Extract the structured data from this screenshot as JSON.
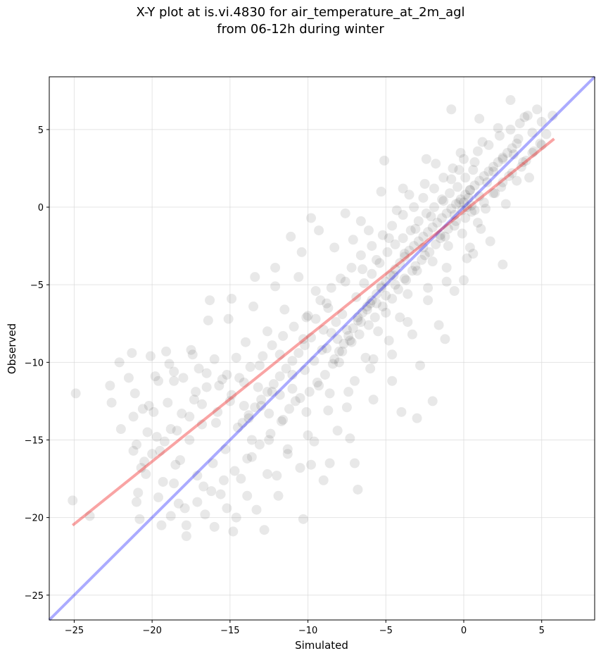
{
  "chart_data": {
    "type": "scatter",
    "title": "X-Y plot at is.vi.4830 for air_temperature_at_2m_agl",
    "subtitle": "from 06-12h during winter",
    "xlabel": "Simulated",
    "ylabel": "Observed",
    "xlim": [
      -26.6,
      8.4
    ],
    "ylim": [
      -26.6,
      8.4
    ],
    "xticks": [
      -25,
      -20,
      -15,
      -10,
      -5,
      0,
      5
    ],
    "yticks": [
      -25,
      -20,
      -15,
      -10,
      -5,
      0,
      5
    ],
    "xtick_labels": [
      "−25",
      "−20",
      "−15",
      "−10",
      "−5",
      "0",
      "5"
    ],
    "ytick_labels": [
      "−25",
      "−20",
      "−15",
      "−10",
      "−5",
      "0",
      "5"
    ],
    "grid": true,
    "point_color": "#000000",
    "point_opacity": 0.09,
    "identity_line": {
      "x": [
        -26.6,
        8.4
      ],
      "y": [
        -26.6,
        8.4
      ],
      "color": "#0000ff"
    },
    "fit_line": {
      "x": [
        -25.1,
        5.8
      ],
      "y": [
        -20.5,
        4.4
      ],
      "color": "#ee1111"
    },
    "points": [
      [
        -25.1,
        -18.9
      ],
      [
        -24.9,
        -12.0
      ],
      [
        -24.0,
        -19.9
      ],
      [
        -22.6,
        -12.6
      ],
      [
        -22.7,
        -11.5
      ],
      [
        -22.1,
        -10.0
      ],
      [
        -21.3,
        -9.4
      ],
      [
        -21.1,
        -12.0
      ],
      [
        -21.0,
        -15.3
      ],
      [
        -20.9,
        -18.4
      ],
      [
        -20.8,
        -20.1
      ],
      [
        -20.6,
        -13.0
      ],
      [
        -20.5,
        -16.4
      ],
      [
        -20.3,
        -14.5
      ],
      [
        -20.1,
        -9.6
      ],
      [
        -19.9,
        -13.2
      ],
      [
        -19.6,
        -11.2
      ],
      [
        -19.5,
        -15.7
      ],
      [
        -19.3,
        -17.7
      ],
      [
        -19.1,
        -9.3
      ],
      [
        -19.0,
        -12.6
      ],
      [
        -18.8,
        -14.3
      ],
      [
        -18.6,
        -10.6
      ],
      [
        -18.5,
        -16.6
      ],
      [
        -18.3,
        -19.1
      ],
      [
        -18.1,
        -13.3
      ],
      [
        -18.0,
        -11.0
      ],
      [
        -17.8,
        -21.2
      ],
      [
        -17.6,
        -15.0
      ],
      [
        -17.5,
        -9.2
      ],
      [
        -17.3,
        -12.4
      ],
      [
        -17.1,
        -17.3
      ],
      [
        -17.0,
        -10.4
      ],
      [
        -16.8,
        -14.0
      ],
      [
        -16.6,
        -19.8
      ],
      [
        -16.5,
        -11.6
      ],
      [
        -16.3,
        -6.0
      ],
      [
        -16.1,
        -16.5
      ],
      [
        -16.0,
        -9.8
      ],
      [
        -15.8,
        -13.2
      ],
      [
        -15.6,
        -18.5
      ],
      [
        -15.5,
        -11.1
      ],
      [
        -15.3,
        -15.6
      ],
      [
        -15.1,
        -7.2
      ],
      [
        -15.0,
        -12.5
      ],
      [
        -14.8,
        -20.9
      ],
      [
        -14.6,
        -9.7
      ],
      [
        -14.5,
        -14.2
      ],
      [
        -14.3,
        -17.5
      ],
      [
        -14.1,
        -11.3
      ],
      [
        -14.0,
        -8.7
      ],
      [
        -13.8,
        -13.6
      ],
      [
        -13.6,
        -16.1
      ],
      [
        -13.5,
        -6.4
      ],
      [
        -13.3,
        -19.5
      ],
      [
        -13.1,
        -10.2
      ],
      [
        -13.0,
        -12.8
      ],
      [
        -12.8,
        -20.8
      ],
      [
        -12.6,
        -8.0
      ],
      [
        -12.5,
        -15.0
      ],
      [
        -12.3,
        -11.9
      ],
      [
        -12.1,
        -3.9
      ],
      [
        -12.0,
        -17.3
      ],
      [
        -11.8,
        -9.5
      ],
      [
        -11.6,
        -13.7
      ],
      [
        -11.5,
        -6.6
      ],
      [
        -11.3,
        -15.6
      ],
      [
        -11.1,
        -1.9
      ],
      [
        -11.0,
        -10.8
      ],
      [
        -10.8,
        -12.5
      ],
      [
        -10.6,
        -4.5
      ],
      [
        -10.5,
        -16.8
      ],
      [
        -10.3,
        -8.5
      ],
      [
        -10.1,
        -13.2
      ],
      [
        -10.0,
        -7.0
      ],
      [
        -9.8,
        -0.7
      ],
      [
        -9.6,
        -15.1
      ],
      [
        -9.5,
        -5.4
      ],
      [
        -9.3,
        -11.5
      ],
      [
        -9.1,
        -9.2
      ],
      [
        -9.0,
        -17.6
      ],
      [
        -8.8,
        -6.2
      ],
      [
        -8.6,
        -12.0
      ],
      [
        -8.5,
        -8.1
      ],
      [
        -8.3,
        -2.6
      ],
      [
        -8.1,
        -14.4
      ],
      [
        -8.0,
        -10.0
      ],
      [
        -7.8,
        -6.9
      ],
      [
        -7.6,
        -4.8
      ],
      [
        -7.5,
        -12.9
      ],
      [
        -7.3,
        -8.6
      ],
      [
        -7.1,
        -2.1
      ],
      [
        -7.0,
        -11.2
      ],
      [
        -6.8,
        -18.2
      ],
      [
        -6.6,
        -7.4
      ],
      [
        -6.5,
        -4.0
      ],
      [
        -6.3,
        -9.7
      ],
      [
        -6.1,
        -1.5
      ],
      [
        -6.0,
        -6.2
      ],
      [
        -5.8,
        -12.4
      ],
      [
        -5.6,
        -3.4
      ],
      [
        -5.5,
        -8.0
      ],
      [
        -5.3,
        -5.1
      ],
      [
        -5.1,
        3.0
      ],
      [
        -5.0,
        -6.8
      ],
      [
        -4.8,
        -2.0
      ],
      [
        -4.6,
        -9.5
      ],
      [
        -4.5,
        -4.4
      ],
      [
        -4.3,
        -0.2
      ],
      [
        -4.1,
        -7.1
      ],
      [
        -4.0,
        -13.2
      ],
      [
        -3.8,
        -3.0
      ],
      [
        -3.6,
        -5.6
      ],
      [
        -3.5,
        0.8
      ],
      [
        -3.3,
        -8.2
      ],
      [
        -3.1,
        -1.4
      ],
      [
        -3.0,
        -4.1
      ],
      [
        -2.8,
        -10.2
      ],
      [
        -2.6,
        -2.6
      ],
      [
        -2.5,
        1.5
      ],
      [
        -2.3,
        -6.0
      ],
      [
        -2.1,
        -0.6
      ],
      [
        -2.0,
        -3.5
      ],
      [
        -1.8,
        2.8
      ],
      [
        -1.6,
        -7.6
      ],
      [
        -1.5,
        -1.8
      ],
      [
        -1.3,
        0.4
      ],
      [
        -1.1,
        -4.8
      ],
      [
        -1.0,
        -2.5
      ],
      [
        -0.8,
        1.8
      ],
      [
        -0.6,
        -5.4
      ],
      [
        -0.5,
        -0.9
      ],
      [
        -0.3,
        2.4
      ],
      [
        -0.1,
        -1.7
      ],
      [
        0.0,
        0.3
      ],
      [
        0.2,
        -3.3
      ],
      [
        0.4,
        1.1
      ],
      [
        0.5,
        -0.3
      ],
      [
        0.7,
        2.9
      ],
      [
        0.9,
        -1.0
      ],
      [
        1.0,
        0.7
      ],
      [
        1.2,
        4.2
      ],
      [
        1.4,
        -0.1
      ],
      [
        1.5,
        1.6
      ],
      [
        1.7,
        -2.2
      ],
      [
        1.9,
        2.3
      ],
      [
        2.0,
        0.9
      ],
      [
        2.2,
        5.1
      ],
      [
        2.4,
        1.3
      ],
      [
        2.5,
        3.1
      ],
      [
        2.7,
        0.2
      ],
      [
        2.9,
        2.0
      ],
      [
        3.0,
        6.9
      ],
      [
        3.2,
        3.4
      ],
      [
        3.4,
        1.7
      ],
      [
        3.5,
        4.4
      ],
      [
        3.7,
        2.6
      ],
      [
        3.9,
        5.8
      ],
      [
        4.0,
        3.0
      ],
      [
        4.2,
        1.9
      ],
      [
        4.4,
        4.8
      ],
      [
        4.5,
        3.6
      ],
      [
        4.7,
        6.3
      ],
      [
        4.9,
        4.1
      ],
      [
        5.0,
        5.5
      ],
      [
        5.3,
        4.7
      ],
      [
        5.7,
        5.9
      ],
      [
        2.5,
        -3.7
      ],
      [
        1.0,
        5.7
      ],
      [
        -0.8,
        6.3
      ],
      [
        0.0,
        -4.7
      ],
      [
        -2.0,
        -12.5
      ],
      [
        -3.0,
        -13.6
      ],
      [
        -5.8,
        -9.8
      ],
      [
        -7.0,
        -16.5
      ],
      [
        -10.3,
        -20.1
      ],
      [
        -9.8,
        -16.6
      ],
      [
        -11.9,
        -18.6
      ],
      [
        -13.6,
        -15.0
      ],
      [
        -14.6,
        -20.0
      ],
      [
        -16.0,
        -20.6
      ],
      [
        -17.8,
        -20.5
      ],
      [
        -18.6,
        -17.8
      ],
      [
        -19.4,
        -20.5
      ],
      [
        -21.0,
        -19.0
      ],
      [
        -8.6,
        -16.5
      ],
      [
        -7.3,
        -14.9
      ],
      [
        -4.6,
        -11.2
      ],
      [
        -1.2,
        -8.5
      ],
      [
        0.6,
        -3.0
      ],
      [
        -0.2,
        3.5
      ],
      [
        -2.4,
        3.1
      ],
      [
        -3.9,
        1.2
      ],
      [
        -5.3,
        1.0
      ],
      [
        -6.6,
        -0.9
      ],
      [
        -7.6,
        -0.4
      ],
      [
        -9.3,
        -1.5
      ],
      [
        -10.4,
        -2.9
      ],
      [
        -12.1,
        -5.1
      ],
      [
        -13.4,
        -4.5
      ],
      [
        -14.9,
        -5.9
      ],
      [
        -16.4,
        -7.3
      ],
      [
        -17.4,
        -9.5
      ],
      [
        -18.6,
        -11.2
      ],
      [
        -20.2,
        -12.8
      ],
      [
        -21.5,
        -11.0
      ],
      [
        -8.3,
        -9.8
      ],
      [
        -8.0,
        -9.3
      ],
      [
        -7.7,
        -8.8
      ],
      [
        -7.4,
        -8.3
      ],
      [
        -7.1,
        -7.8
      ],
      [
        -6.8,
        -7.3
      ],
      [
        -6.5,
        -6.8
      ],
      [
        -6.2,
        -6.4
      ],
      [
        -5.9,
        -6.0
      ],
      [
        -5.6,
        -5.6
      ],
      [
        -5.3,
        -5.2
      ],
      [
        -5.0,
        -4.8
      ],
      [
        -4.7,
        -4.4
      ],
      [
        -4.4,
        -4.0
      ],
      [
        -4.1,
        -3.6
      ],
      [
        -3.8,
        -3.2
      ],
      [
        -3.5,
        -2.8
      ],
      [
        -3.2,
        -2.5
      ],
      [
        -2.9,
        -2.2
      ],
      [
        -2.6,
        -1.9
      ],
      [
        -2.3,
        -1.6
      ],
      [
        -2.0,
        -1.3
      ],
      [
        -1.7,
        -1.0
      ],
      [
        -1.4,
        -0.7
      ],
      [
        -1.1,
        -0.4
      ],
      [
        -0.8,
        -0.1
      ],
      [
        -0.5,
        0.2
      ],
      [
        -0.2,
        0.5
      ],
      [
        0.1,
        0.8
      ],
      [
        0.4,
        1.1
      ],
      [
        0.7,
        1.4
      ],
      [
        1.0,
        1.7
      ],
      [
        1.3,
        2.0
      ],
      [
        1.6,
        2.3
      ],
      [
        1.9,
        2.6
      ],
      [
        2.2,
        2.9
      ],
      [
        2.5,
        3.2
      ],
      [
        2.8,
        3.5
      ],
      [
        3.1,
        3.8
      ],
      [
        3.4,
        4.1
      ],
      [
        -9.8,
        -8.4
      ],
      [
        -10.2,
        -8.9
      ],
      [
        -10.6,
        -9.4
      ],
      [
        -11.0,
        -9.9
      ],
      [
        -11.4,
        -10.4
      ],
      [
        -11.8,
        -10.9
      ],
      [
        -12.2,
        -11.4
      ],
      [
        -12.6,
        -11.9
      ],
      [
        -13.0,
        -12.4
      ],
      [
        -13.4,
        -12.9
      ],
      [
        -13.8,
        -13.4
      ],
      [
        -14.2,
        -13.9
      ],
      [
        -9.5,
        -7.2
      ],
      [
        -9.0,
        -7.9
      ],
      [
        -8.7,
        -6.5
      ],
      [
        -8.2,
        -7.4
      ],
      [
        -6.9,
        -5.8
      ],
      [
        -6.4,
        -4.9
      ],
      [
        -5.9,
        -4.3
      ],
      [
        -5.4,
        -3.6
      ],
      [
        -4.9,
        -2.9
      ],
      [
        -4.4,
        -2.4
      ],
      [
        -3.9,
        -2.0
      ],
      [
        -3.4,
        -1.5
      ],
      [
        -2.9,
        -0.9
      ],
      [
        -2.4,
        -0.4
      ],
      [
        -1.9,
        0.0
      ],
      [
        -1.4,
        0.5
      ],
      [
        -0.9,
        0.9
      ],
      [
        -0.4,
        1.3
      ],
      [
        0.1,
        1.9
      ],
      [
        0.6,
        2.4
      ],
      [
        -0.1,
        -0.2
      ],
      [
        0.2,
        0.0
      ],
      [
        -0.3,
        0.3
      ],
      [
        0.3,
        0.6
      ],
      [
        -0.6,
        -0.5
      ],
      [
        0.5,
        0.1
      ],
      [
        -1.0,
        -1.4
      ],
      [
        -1.5,
        -2.0
      ],
      [
        -2.2,
        -2.9
      ],
      [
        -2.7,
        -3.4
      ],
      [
        -3.3,
        -4.1
      ],
      [
        -3.7,
        -4.7
      ],
      [
        -4.2,
        -5.3
      ],
      [
        -4.6,
        -5.9
      ],
      [
        -5.2,
        -6.4
      ],
      [
        -5.7,
        -7.1
      ],
      [
        -6.1,
        -7.6
      ],
      [
        -6.7,
        -8.2
      ],
      [
        -7.2,
        -8.7
      ],
      [
        -7.8,
        -9.3
      ],
      [
        -8.4,
        -10.1
      ],
      [
        -8.9,
        -10.8
      ],
      [
        -9.4,
        -11.3
      ],
      [
        -9.9,
        -11.9
      ],
      [
        -10.5,
        -12.3
      ],
      [
        -11.2,
        -13.0
      ],
      [
        -11.7,
        -13.8
      ],
      [
        -12.4,
        -14.6
      ],
      [
        -13.1,
        -15.3
      ],
      [
        -13.9,
        -16.2
      ],
      [
        -14.7,
        -17.0
      ],
      [
        -15.4,
        -17.6
      ],
      [
        -16.2,
        -18.3
      ],
      [
        -17.1,
        -19.0
      ],
      [
        -17.9,
        -19.4
      ],
      [
        -18.8,
        -19.9
      ],
      [
        -19.6,
        -18.7
      ],
      [
        -20.4,
        -17.2
      ],
      [
        -21.2,
        -15.7
      ],
      [
        -22.0,
        -14.3
      ],
      [
        -15.7,
        -11.5
      ],
      [
        -15.2,
        -10.8
      ],
      [
        -14.4,
        -11.0
      ],
      [
        -13.7,
        -10.3
      ],
      [
        -12.9,
        -9.6
      ],
      [
        -12.3,
        -8.9
      ],
      [
        -11.6,
        -8.3
      ],
      [
        -10.9,
        -7.7
      ],
      [
        -10.1,
        -7.1
      ],
      [
        -9.2,
        -6.0
      ],
      [
        -8.5,
        -5.2
      ],
      [
        -7.9,
        -4.6
      ],
      [
        -7.2,
        -3.9
      ],
      [
        -6.6,
        -3.1
      ],
      [
        -5.9,
        -2.5
      ],
      [
        -5.2,
        -1.8
      ],
      [
        -4.6,
        -1.2
      ],
      [
        -3.9,
        -0.5
      ],
      [
        -3.2,
        0.0
      ],
      [
        -2.6,
        0.6
      ],
      [
        -1.9,
        1.2
      ],
      [
        -1.3,
        1.9
      ],
      [
        -0.7,
        2.5
      ],
      [
        0.0,
        3.1
      ],
      [
        0.9,
        3.6
      ],
      [
        1.6,
        4.0
      ],
      [
        2.3,
        4.6
      ],
      [
        3.0,
        5.0
      ],
      [
        3.6,
        5.4
      ],
      [
        4.1,
        5.9
      ],
      [
        -16.8,
        -12.7
      ],
      [
        -17.6,
        -13.5
      ],
      [
        -18.4,
        -14.4
      ],
      [
        -19.2,
        -15.1
      ],
      [
        -20.0,
        -15.9
      ],
      [
        -20.7,
        -16.8
      ],
      [
        -18.9,
        -10.1
      ],
      [
        -19.8,
        -10.9
      ],
      [
        -17.2,
        -11.9
      ],
      [
        -16.5,
        -10.7
      ],
      [
        -15.9,
        -13.9
      ],
      [
        -14.9,
        -12.1
      ],
      [
        -14.1,
        -12.8
      ],
      [
        -13.2,
        -11.6
      ],
      [
        -12.5,
        -13.3
      ],
      [
        -11.8,
        -12.1
      ],
      [
        -11.0,
        -11.7
      ],
      [
        -10.2,
        -10.5
      ],
      [
        -9.6,
        -9.9
      ],
      [
        -8.8,
        -9.1
      ],
      [
        -8.1,
        -8.5
      ],
      [
        -7.5,
        -7.9
      ],
      [
        -6.8,
        -7.1
      ],
      [
        -6.2,
        -6.6
      ],
      [
        -5.6,
        -6.2
      ],
      [
        -5.0,
        -5.7
      ],
      [
        -4.4,
        -5.0
      ],
      [
        -3.8,
        -4.6
      ],
      [
        -3.1,
        -3.8
      ],
      [
        -2.5,
        -3.1
      ],
      [
        -1.8,
        -2.4
      ],
      [
        -1.2,
        -1.9
      ],
      [
        -0.6,
        -1.2
      ],
      [
        0.1,
        -0.7
      ],
      [
        0.7,
        -0.2
      ],
      [
        1.3,
        0.3
      ],
      [
        1.9,
        0.9
      ],
      [
        2.5,
        1.6
      ],
      [
        3.1,
        2.2
      ],
      [
        3.8,
        2.9
      ],
      [
        4.4,
        3.5
      ],
      [
        5.0,
        4.0
      ],
      [
        -4.8,
        -8.6
      ],
      [
        -3.6,
        -7.4
      ],
      [
        -2.3,
        -5.2
      ],
      [
        -1.1,
        -3.9
      ],
      [
        0.4,
        -2.6
      ],
      [
        1.1,
        -1.4
      ],
      [
        -6.0,
        -10.4
      ],
      [
        -7.4,
        -11.9
      ],
      [
        -8.7,
        -13.1
      ],
      [
        -10.0,
        -14.7
      ],
      [
        -11.3,
        -15.9
      ],
      [
        -12.6,
        -17.2
      ],
      [
        -13.9,
        -18.6
      ],
      [
        -15.2,
        -19.4
      ],
      [
        -16.7,
        -18.0
      ],
      [
        -18.2,
        -16.3
      ],
      [
        -19.7,
        -14.8
      ],
      [
        -21.2,
        -13.5
      ]
    ]
  }
}
